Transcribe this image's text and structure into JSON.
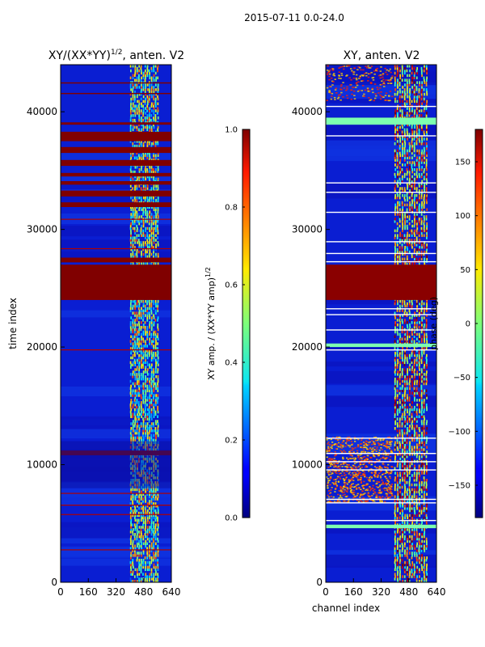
{
  "suptitle": "2015-07-11 0.0-24.0",
  "chart_data": [
    {
      "type": "heatmap",
      "title": "XY/(XX*YY)",
      "title_sup": "1/2",
      "title_suffix": ", anten. V2",
      "xlabel": "",
      "ylabel": "time index",
      "xlim": [
        0,
        640
      ],
      "ylim": [
        0,
        44000
      ],
      "x_ticks": [
        "0",
        "160",
        "320",
        "480",
        "640"
      ],
      "y_ticks": [
        "0",
        "10000",
        "20000",
        "30000",
        "40000"
      ],
      "colorbar": {
        "label": "XY amp. / (XX*YY amp)",
        "label_sup": "1/2",
        "min": 0.0,
        "max": 1.0,
        "ticks": [
          "0.0",
          "0.2",
          "0.4",
          "0.6",
          "0.8",
          "1.0"
        ],
        "colormap": "jet"
      },
      "colors": {
        "low": "#0a1ed2",
        "high": "#800000",
        "mid": "#7dff7a"
      }
    },
    {
      "type": "heatmap",
      "title": "XY, anten. V2",
      "xlabel": "channel index",
      "ylabel": "",
      "xlim": [
        0,
        640
      ],
      "ylim": [
        0,
        44000
      ],
      "x_ticks": [
        "0",
        "160",
        "320",
        "480",
        "640"
      ],
      "y_ticks": [
        "0",
        "10000",
        "20000",
        "30000",
        "40000"
      ],
      "colorbar": {
        "label": "phase (deg)",
        "min": -180,
        "max": 180,
        "ticks": [
          "−150",
          "−100",
          "−50",
          "0",
          "50",
          "100",
          "150"
        ],
        "colormap": "jet"
      },
      "colors": {
        "low": "#0a1ed2",
        "high": "#800000",
        "mid": "#7dff7a"
      }
    }
  ]
}
